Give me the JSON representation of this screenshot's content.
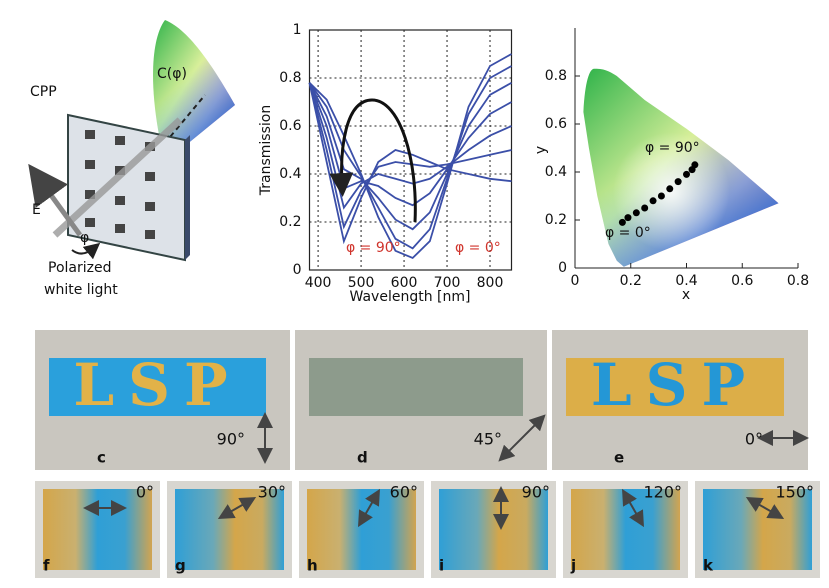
{
  "chart_data": [
    {
      "type": "line",
      "ylabel": "Transmission",
      "xlabel": "Wavelength [nm]",
      "x": [
        380,
        420,
        460,
        500,
        540,
        580,
        620,
        660,
        700,
        750,
        800,
        850
      ],
      "series": [
        {
          "color": "#3b4fa8",
          "values": [
            0.78,
            0.45,
            0.12,
            0.3,
            0.45,
            0.5,
            0.48,
            0.45,
            0.42,
            0.4,
            0.38,
            0.37
          ]
        },
        {
          "color": "#3b4fa8",
          "values": [
            0.78,
            0.5,
            0.18,
            0.33,
            0.43,
            0.45,
            0.44,
            0.43,
            0.44,
            0.46,
            0.48,
            0.5
          ]
        },
        {
          "color": "#3b4fa8",
          "values": [
            0.78,
            0.55,
            0.26,
            0.36,
            0.4,
            0.38,
            0.36,
            0.38,
            0.43,
            0.5,
            0.56,
            0.6
          ]
        },
        {
          "color": "#3b4fa8",
          "values": [
            0.78,
            0.6,
            0.34,
            0.37,
            0.35,
            0.3,
            0.27,
            0.32,
            0.42,
            0.55,
            0.65,
            0.7
          ]
        },
        {
          "color": "#3b4fa8",
          "values": [
            0.78,
            0.64,
            0.42,
            0.38,
            0.3,
            0.21,
            0.17,
            0.24,
            0.4,
            0.6,
            0.73,
            0.78
          ]
        },
        {
          "color": "#3b4fa8",
          "values": [
            0.78,
            0.68,
            0.5,
            0.39,
            0.26,
            0.13,
            0.09,
            0.17,
            0.38,
            0.65,
            0.8,
            0.85
          ]
        },
        {
          "color": "#3b4fa8",
          "values": [
            0.78,
            0.71,
            0.56,
            0.4,
            0.22,
            0.08,
            0.05,
            0.12,
            0.36,
            0.68,
            0.85,
            0.9
          ]
        }
      ],
      "xlim": [
        380,
        850
      ],
      "xticks": [
        400,
        500,
        600,
        700,
        800
      ],
      "ylim": [
        0,
        1
      ],
      "yticks": [
        0,
        0.2,
        0.4,
        0.6,
        0.8,
        1
      ],
      "grid": true,
      "annotations": [
        "φ = 90°",
        "φ = 0°"
      ]
    },
    {
      "type": "scatter",
      "xlabel": "x",
      "ylabel": "y",
      "x": [
        0.17,
        0.19,
        0.22,
        0.25,
        0.28,
        0.31,
        0.34,
        0.37,
        0.4,
        0.42,
        0.43
      ],
      "values": [
        0.19,
        0.21,
        0.23,
        0.25,
        0.28,
        0.3,
        0.33,
        0.36,
        0.39,
        0.41,
        0.43
      ],
      "color": "#000000",
      "xlim": [
        0,
        0.8
      ],
      "xticks": [
        0,
        0.2,
        0.4,
        0.6,
        0.8
      ],
      "ylim": [
        0,
        1
      ],
      "yticks": [
        0,
        0.2,
        0.4,
        0.6,
        0.8
      ],
      "grid": false,
      "annotations": [
        "φ = 90°",
        "φ = 0°"
      ]
    }
  ],
  "schematic": {
    "plate": "CPP",
    "color": "C(φ)",
    "field": "E",
    "angle": "φ",
    "light": [
      "Polarized",
      "white light"
    ]
  },
  "photos": [
    {
      "label": "c",
      "text": "LSP",
      "angle": "90°"
    },
    {
      "label": "d",
      "angle": "45°"
    },
    {
      "label": "e",
      "text": "LSP",
      "angle": "0°"
    },
    {
      "label": "f",
      "angle": "0°"
    },
    {
      "label": "g",
      "angle": "30°"
    },
    {
      "label": "h",
      "angle": "60°"
    },
    {
      "label": "i",
      "angle": "90°"
    },
    {
      "label": "j",
      "angle": "120°"
    },
    {
      "label": "k",
      "angle": "150°"
    }
  ]
}
